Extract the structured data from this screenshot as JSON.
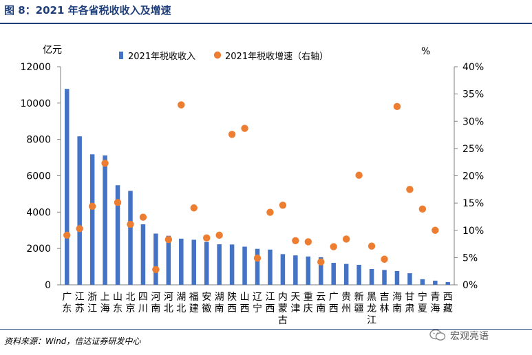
{
  "header": {
    "title": "图 8：2021 年各省税收收入及增速"
  },
  "footer": {
    "source": "资料来源：Wind，信达证券研发中心",
    "watermark": "宏观亮语"
  },
  "colors": {
    "bar": "#4472c4",
    "dot": "#ed7d31",
    "title": "#1f3f7a"
  },
  "chart_data": {
    "type": "bar",
    "categories": [
      "广东",
      "江苏",
      "浙江",
      "上海",
      "山东",
      "北京",
      "四川",
      "河南",
      "河北",
      "湖北",
      "福建",
      "安徽",
      "湖南",
      "陕西",
      "山西",
      "辽宁",
      "江西",
      "内蒙古",
      "天津",
      "重庆",
      "云南",
      "广西",
      "贵州",
      "新疆",
      "黑龙江",
      "吉林",
      "海南",
      "甘肃",
      "宁夏",
      "青海",
      "西藏"
    ],
    "series": [
      {
        "name": "2021年税收收入",
        "type": "bar",
        "axis": "left",
        "values": [
          10780,
          8170,
          7180,
          7120,
          5480,
          5170,
          3330,
          2820,
          2700,
          2540,
          2480,
          2360,
          2230,
          2220,
          2100,
          1980,
          1940,
          1690,
          1620,
          1560,
          1520,
          1210,
          1150,
          1100,
          870,
          820,
          760,
          640,
          310,
          230,
          150
        ]
      },
      {
        "name": "2021年税收增速（右轴）",
        "type": "scatter",
        "axis": "right",
        "values": [
          9.1,
          10.3,
          14.4,
          22.3,
          15.1,
          11.1,
          12.4,
          2.8,
          8.3,
          33.0,
          14.1,
          8.6,
          9.1,
          27.6,
          28.7,
          4.9,
          13.3,
          14.6,
          8.1,
          7.9,
          4.2,
          7.0,
          8.4,
          20.1,
          7.1,
          4.7,
          32.7,
          17.5,
          13.9,
          10.0,
          null
        ]
      }
    ],
    "left_axis": {
      "unit": "亿元",
      "ylim": [
        0,
        12000
      ],
      "ticks": [
        "0",
        "2000",
        "4000",
        "6000",
        "8000",
        "10000",
        "12000"
      ]
    },
    "right_axis": {
      "unit": "%",
      "ylim": [
        0,
        40
      ],
      "ticks": [
        "0%",
        "5%",
        "10%",
        "15%",
        "20%",
        "25%",
        "30%",
        "35%",
        "40%"
      ]
    },
    "legend": {
      "position": "top-center",
      "entries": [
        "2021年税收收入",
        "2021年税收增速（右轴）"
      ]
    },
    "grid": false
  }
}
